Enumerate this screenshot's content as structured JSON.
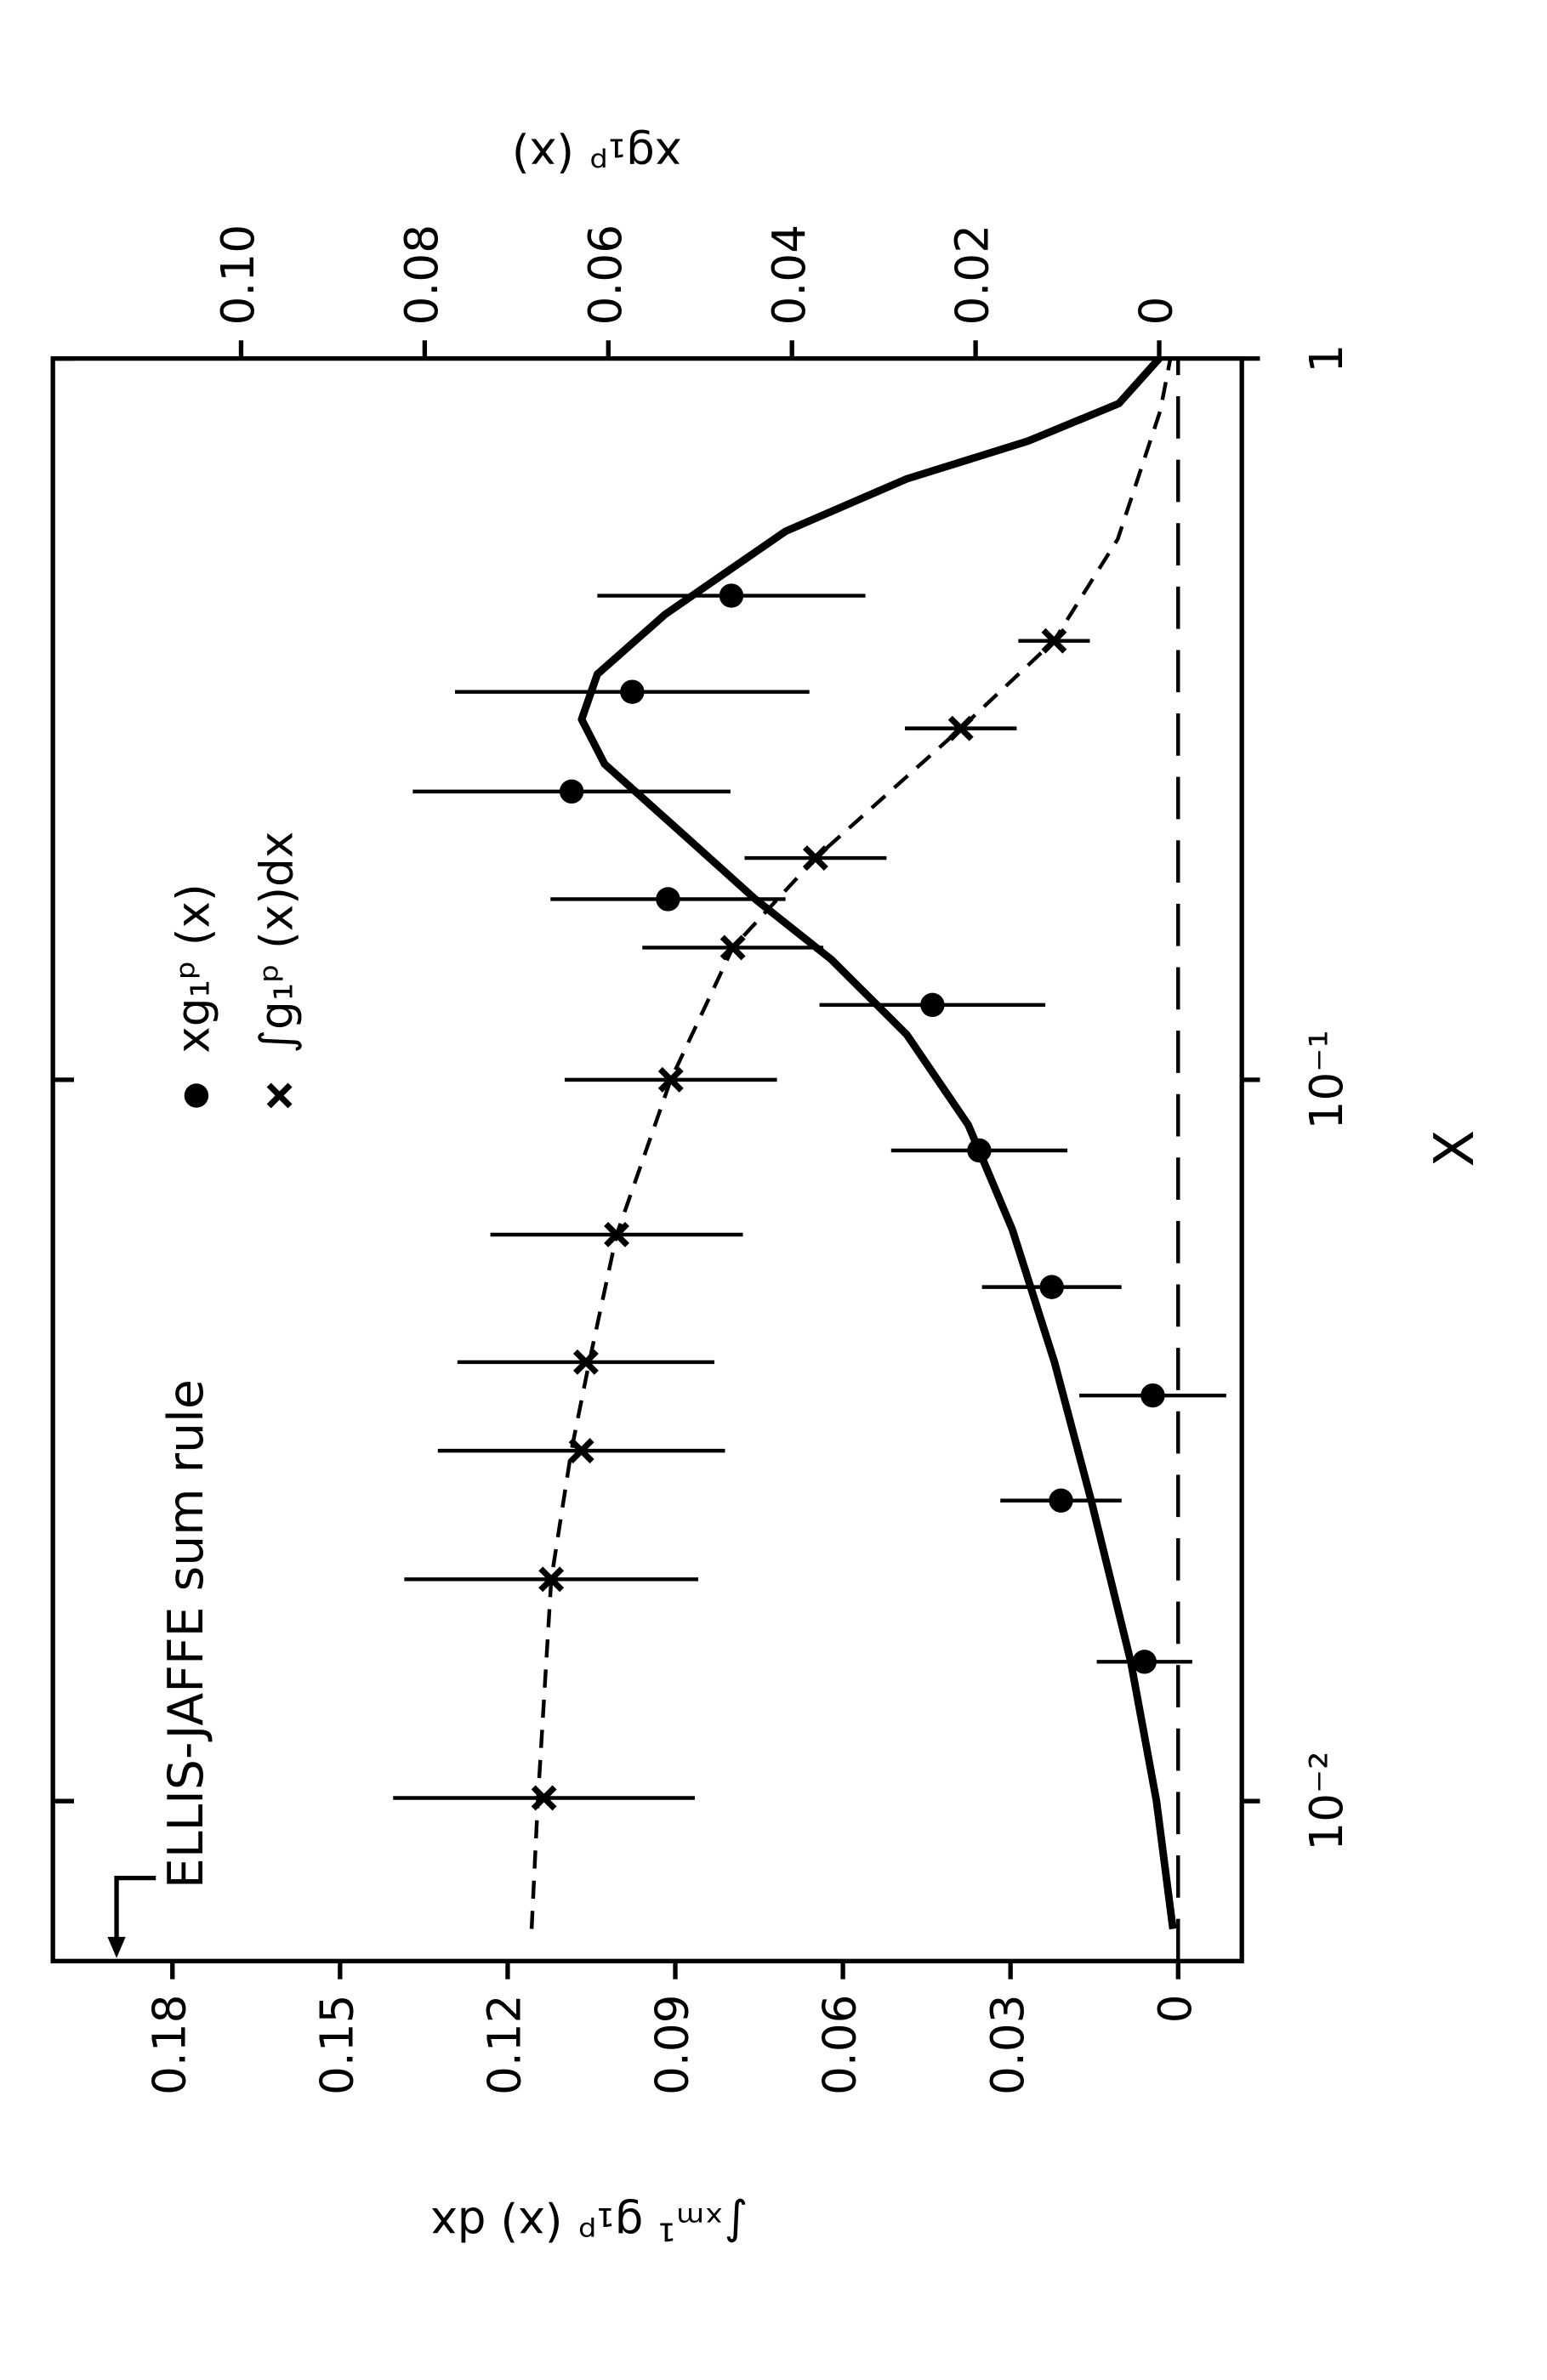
{
  "chart_data": {
    "type": "scatter",
    "x_label": "X",
    "y_label": "∫ₓₘ¹ g₁ᵖ (x) dx",
    "y2_label": "xg₁ᵖ (x)",
    "x_scale": "log",
    "xlim": [
      0.006,
      1
    ],
    "xticks": [
      {
        "value": 0.01,
        "label": "10⁻²"
      },
      {
        "value": 0.1,
        "label": "10⁻¹"
      },
      1
    ],
    "ylim": [
      -0.0114,
      0.2014
    ],
    "yticks": [
      0,
      0.03,
      0.06,
      0.09,
      0.12,
      0.15,
      0.18
    ],
    "y2lim": [
      -0.009,
      0.1205
    ],
    "y2ticks": [
      0,
      0.02,
      0.04,
      0.06,
      0.08,
      {
        "value": 0.1,
        "label": "0.10"
      }
    ],
    "zero_line": true,
    "annotations": [
      {
        "text": "ELLIS-JAFFE sum rule",
        "value": 0.19
      }
    ],
    "series": [
      {
        "name": "xg₁ᵖ (x)",
        "marker": "circle",
        "axis": "y2",
        "color": "#000000",
        "x": [
          0.0156,
          0.0261,
          0.0365,
          0.0516,
          0.0798,
          0.127,
          0.178,
          0.251,
          0.345,
          0.469
        ],
        "values": [
          0.0016,
          0.0107,
          0.0007,
          0.0117,
          0.0196,
          0.0247,
          0.0535,
          0.064,
          0.0574,
          0.0466
        ],
        "errors": [
          0.0052,
          0.0066,
          0.008,
          0.0076,
          0.0096,
          0.0123,
          0.0128,
          0.0173,
          0.0193,
          0.0146
        ],
        "fit_style": "solid",
        "fit_x": [
          0.00665,
          0.01,
          0.0156,
          0.0261,
          0.0406,
          0.062,
          0.0866,
          0.1155,
          0.1468,
          0.178,
          0.221,
          0.274,
          0.316,
          0.365,
          0.442,
          0.576,
          0.681,
          0.768,
          0.866,
          1
        ],
        "fit_values": [
          -0.0015,
          0.0003,
          0.0031,
          0.0074,
          0.0114,
          0.016,
          0.0208,
          0.0275,
          0.0357,
          0.044,
          0.0522,
          0.0604,
          0.0629,
          0.0612,
          0.0538,
          0.0407,
          0.0275,
          0.0143,
          0.0044,
          0
        ]
      },
      {
        "name": "∫g₁ᵖ (x)dx",
        "marker": "cross",
        "axis": "y",
        "color": "#000000",
        "x": [
          0.0101,
          0.0203,
          0.0306,
          0.0406,
          0.061,
          0.1,
          0.1525,
          0.203,
          0.307,
          0.406
        ],
        "values": [
          0.1135,
          0.1122,
          0.1068,
          0.106,
          0.1005,
          0.0908,
          0.0797,
          0.0649,
          0.0389,
          0.0222
        ],
        "errors": [
          0.027,
          0.0263,
          0.0257,
          0.023,
          0.0226,
          0.019,
          0.0162,
          0.0127,
          0.01,
          0.0064
        ],
        "fit_style": "dashed",
        "fit_x": [
          0.00665,
          0.01,
          0.0203,
          0.0306,
          0.0406,
          0.061,
          0.1,
          0.1525,
          0.203,
          0.307,
          0.406,
          0.562,
          0.846,
          1
        ],
        "fit_values": [
          0.1157,
          0.1146,
          0.1122,
          0.1086,
          0.1054,
          0.1005,
          0.0908,
          0.0797,
          0.0649,
          0.0389,
          0.0222,
          0.0108,
          0.0032,
          0.0014
        ]
      }
    ]
  }
}
